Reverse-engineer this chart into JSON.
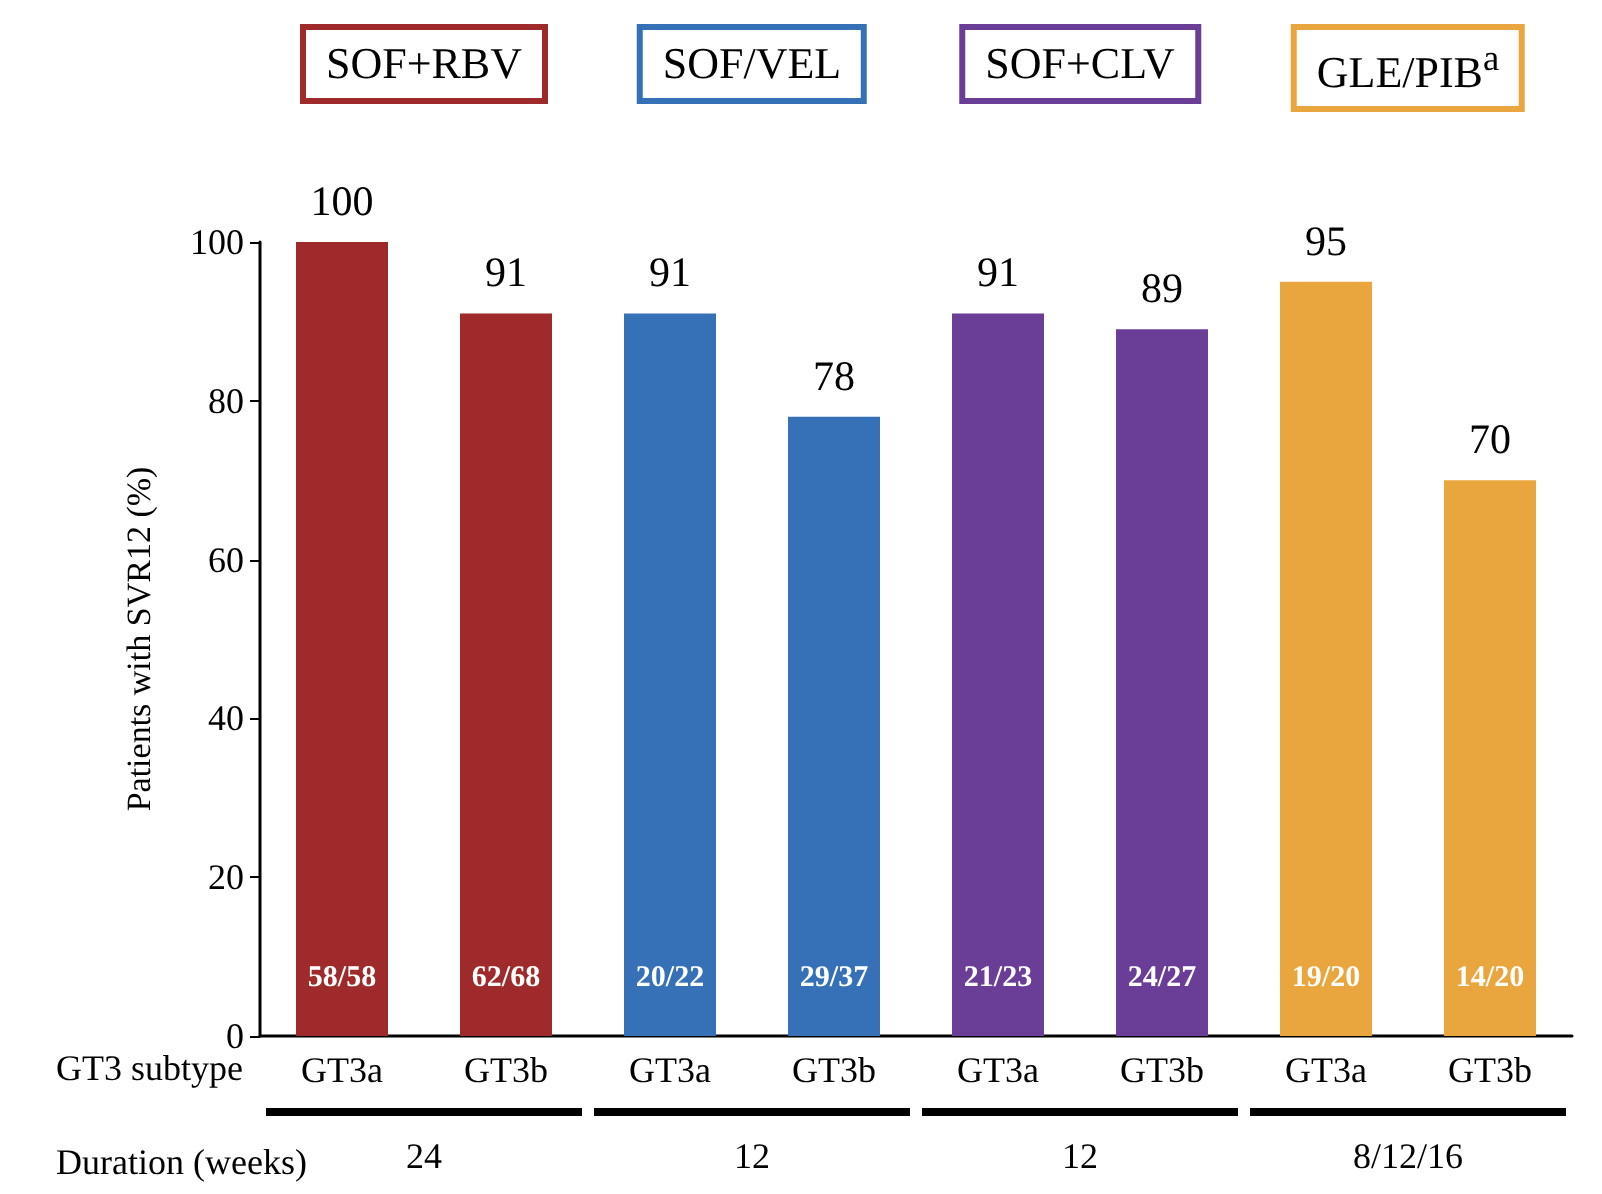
{
  "chart_data": {
    "type": "bar",
    "ylabel": "Patients with SVR12 (%)",
    "categories": [
      "GT3a",
      "GT3b",
      "GT3a",
      "GT3b",
      "GT3a",
      "GT3b",
      "GT3a",
      "GT3b"
    ],
    "series": [
      {
        "name": "SOF+RBV",
        "color": "#9e2a2b",
        "values": [
          100,
          91,
          null,
          null,
          null,
          null,
          null,
          null
        ]
      },
      {
        "name": "SOF/VEL",
        "color": "#3671b8",
        "values": [
          null,
          null,
          91,
          78,
          null,
          null,
          null,
          null
        ]
      },
      {
        "name": "SOF+CLV",
        "color": "#6a3d96",
        "values": [
          null,
          null,
          null,
          null,
          91,
          89,
          null,
          null
        ]
      },
      {
        "name": "GLE/PIB$^{a}$",
        "color": "#eaa63e",
        "values": [
          null,
          null,
          null,
          null,
          null,
          null,
          95,
          70
        ]
      }
    ],
    "ylim": [
      0,
      100
    ],
    "yticks": [
      0,
      20,
      40,
      60,
      80,
      100
    ],
    "grid": false,
    "legend": false,
    "data_labels": true,
    "annotations": [
      "GT3 subtype",
      "Duration (weeks)",
      "24",
      "12",
      "12",
      "8/12/16",
      "58/58",
      "62/68",
      "20/22",
      "29/37",
      "21/23",
      "24/27",
      "19/20",
      "14/20"
    ]
  }
}
